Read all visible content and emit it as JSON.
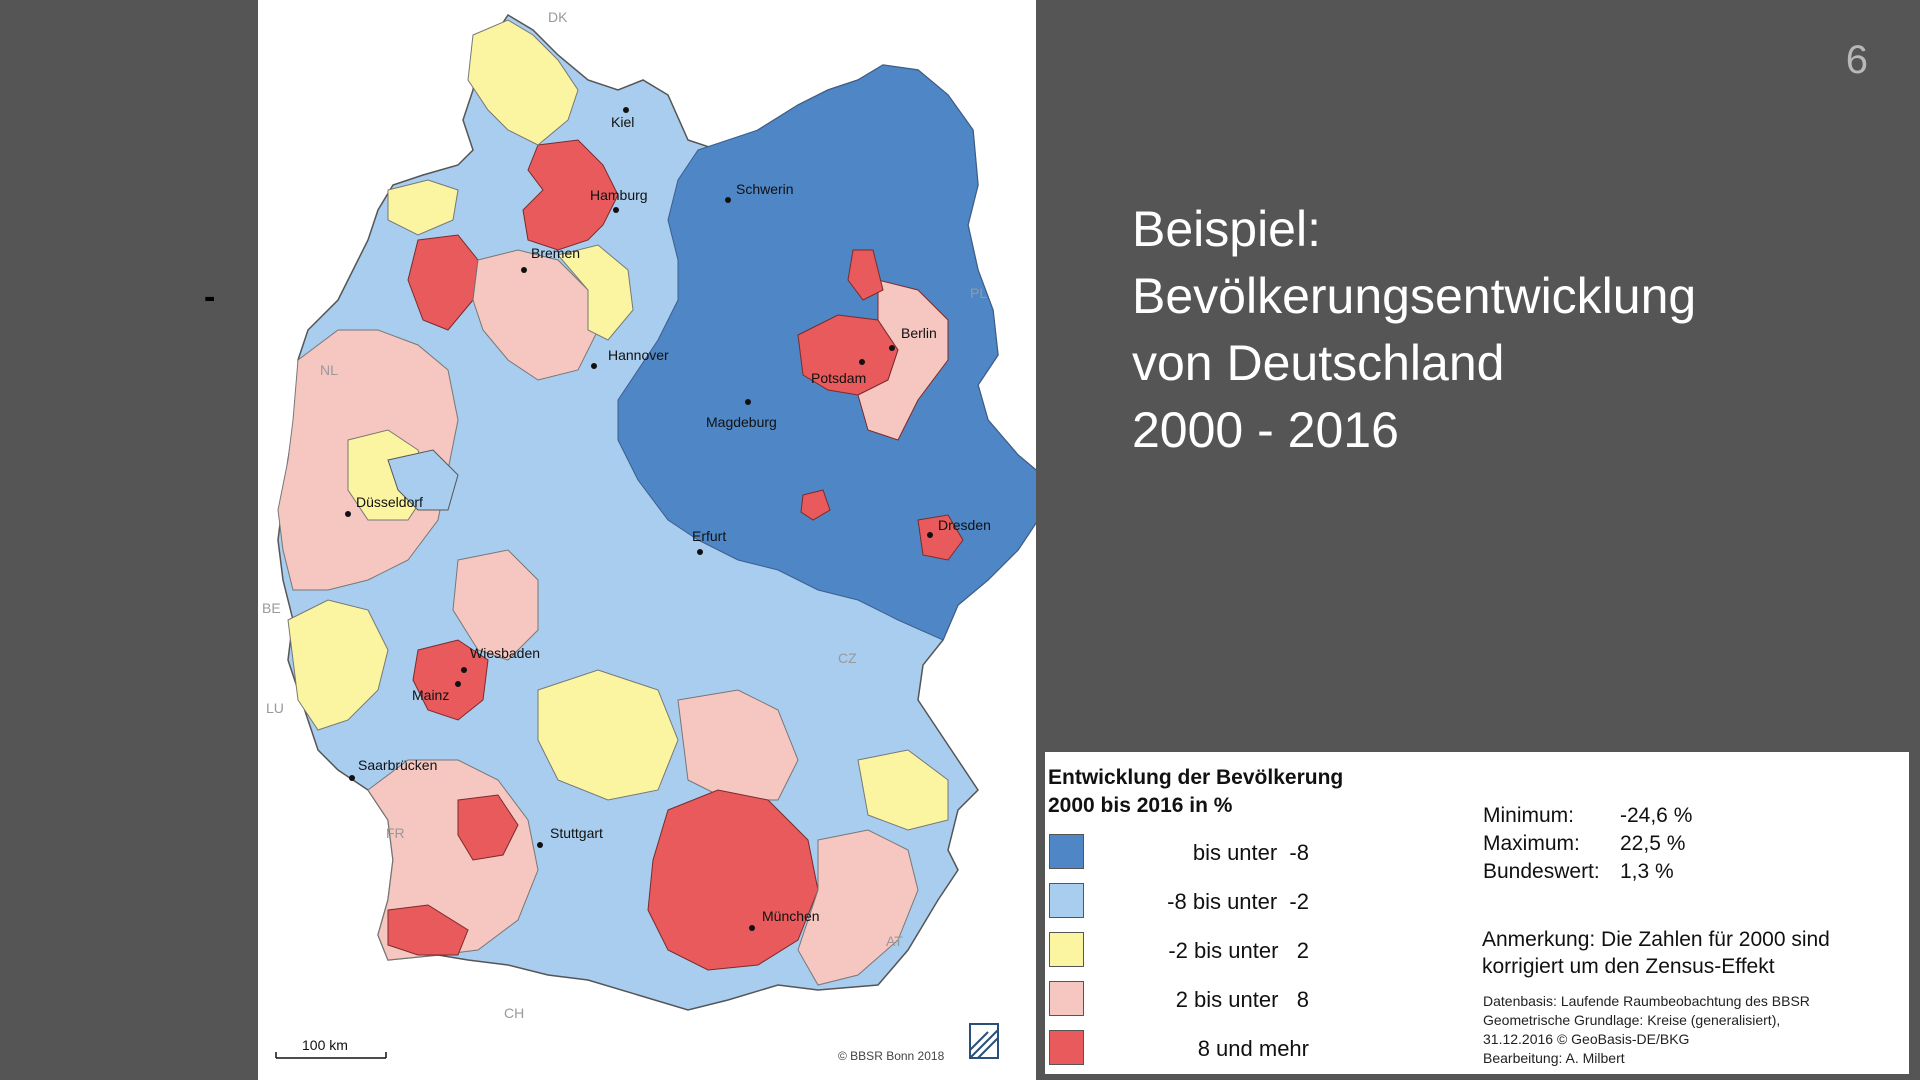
{
  "slide": {
    "page_number": "6",
    "bullet": "-",
    "title_lines": [
      "Beispiel:",
      "Bevölkerungsentwicklung",
      "von Deutschland",
      "2000 - 2016"
    ]
  },
  "map": {
    "cities": [
      {
        "name": "Kiel"
      },
      {
        "name": "Hamburg"
      },
      {
        "name": "Schwerin"
      },
      {
        "name": "Bremen"
      },
      {
        "name": "Berlin"
      },
      {
        "name": "Hannover"
      },
      {
        "name": "Potsdam"
      },
      {
        "name": "Magdeburg"
      },
      {
        "name": "Düsseldorf"
      },
      {
        "name": "Erfurt"
      },
      {
        "name": "Dresden"
      },
      {
        "name": "Wiesbaden"
      },
      {
        "name": "Mainz"
      },
      {
        "name": "Saarbrücken"
      },
      {
        "name": "Stuttgart"
      },
      {
        "name": "München"
      }
    ],
    "neighbors": [
      "DK",
      "PL",
      "NL",
      "BE",
      "LU",
      "CZ",
      "FR",
      "AT",
      "CH"
    ],
    "scale_label": "100 km",
    "copyright": "© BBSR Bonn 2018"
  },
  "legend": {
    "title_line1": "Entwicklung der Bevölkerung",
    "title_line2": "2000 bis 2016 in %",
    "classes": [
      {
        "label": "bis unter  -8",
        "color": "#4f86c6"
      },
      {
        "label": "-8 bis unter  -2",
        "color": "#a9cdee"
      },
      {
        "label": "-2 bis unter   2",
        "color": "#fbf4a1"
      },
      {
        "label": "2 bis unter   8",
        "color": "#f6c6c1"
      },
      {
        "label": "8 und mehr",
        "color": "#e85a5c"
      }
    ],
    "stats": [
      {
        "label": "Minimum:",
        "value": "-24,6 %"
      },
      {
        "label": "Maximum:",
        "value": "22,5 %"
      },
      {
        "label": "Bundeswert:",
        "value": "1,3 %"
      }
    ],
    "note_line1": "Anmerkung: Die Zahlen für 2000 sind",
    "note_line2": "korrigiert um den Zensus-Effekt",
    "sources": [
      "Datenbasis: Laufende Raumbeobachtung des BBSR",
      "Geometrische Grundlage: Kreise (generalisiert),",
      "31.12.2016 © GeoBasis-DE/BKG",
      "Bearbeitung: A. Milbert"
    ]
  }
}
